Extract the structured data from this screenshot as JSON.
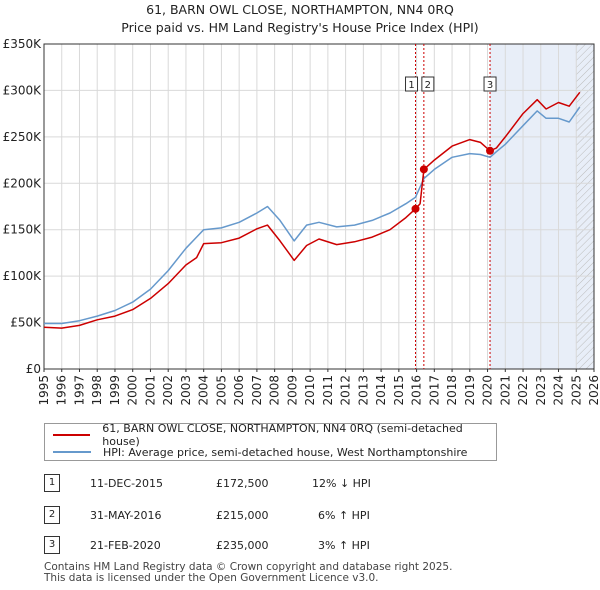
{
  "title_line1": "61, BARN OWL CLOSE, NORTHAMPTON, NN4 0RQ",
  "title_line2": "Price paid vs. HM Land Registry's House Price Index (HPI)",
  "colors": {
    "property": "#cc0000",
    "hpi": "#6699cc",
    "shade": "#e8eef8",
    "grid": "#d9d9d9"
  },
  "chart_data": {
    "type": "line",
    "title": "Price paid vs. HM Land Registry's House Price Index (HPI)",
    "xlabel": "",
    "ylabel": "",
    "xlim": [
      1995,
      2026
    ],
    "ylim": [
      0,
      350000
    ],
    "yticks": [
      0,
      50000,
      100000,
      150000,
      200000,
      250000,
      300000,
      350000
    ],
    "ytick_labels": [
      "£0",
      "£50K",
      "£100K",
      "£150K",
      "£200K",
      "£250K",
      "£300K",
      "£350K"
    ],
    "xticks": [
      "1995",
      "1996",
      "1997",
      "1998",
      "1999",
      "2000",
      "2001",
      "2002",
      "2003",
      "2004",
      "2005",
      "2006",
      "2007",
      "2008",
      "2009",
      "2010",
      "2011",
      "2012",
      "2013",
      "2014",
      "2015",
      "2016",
      "2017",
      "2018",
      "2019",
      "2020",
      "2021",
      "2022",
      "2023",
      "2024",
      "2025",
      "2026"
    ],
    "shaded_from": 2020.14,
    "hatch_from": 2025.0,
    "series": [
      {
        "name": "61, BARN OWL CLOSE, NORTHAMPTON, NN4 0RQ (semi-detached house)",
        "points": [
          [
            1995.0,
            45000
          ],
          [
            1996.0,
            44000
          ],
          [
            1997.0,
            47000
          ],
          [
            1998.0,
            53000
          ],
          [
            1999.0,
            57000
          ],
          [
            2000.0,
            64000
          ],
          [
            2001.0,
            76000
          ],
          [
            2002.0,
            92000
          ],
          [
            2003.0,
            112000
          ],
          [
            2003.6,
            120000
          ],
          [
            2004.0,
            135000
          ],
          [
            2005.0,
            136000
          ],
          [
            2006.0,
            141000
          ],
          [
            2007.0,
            151000
          ],
          [
            2007.6,
            155000
          ],
          [
            2008.3,
            138000
          ],
          [
            2009.1,
            117000
          ],
          [
            2009.8,
            133000
          ],
          [
            2010.5,
            140000
          ],
          [
            2011.5,
            134000
          ],
          [
            2012.5,
            137000
          ],
          [
            2013.5,
            142000
          ],
          [
            2014.5,
            150000
          ],
          [
            2015.4,
            163000
          ],
          [
            2015.94,
            172500
          ],
          [
            2016.2,
            178000
          ],
          [
            2016.41,
            215000
          ],
          [
            2017.0,
            225000
          ],
          [
            2018.0,
            240000
          ],
          [
            2019.0,
            247000
          ],
          [
            2019.6,
            244000
          ],
          [
            2020.14,
            235000
          ],
          [
            2020.5,
            238000
          ],
          [
            2021.0,
            250000
          ],
          [
            2022.0,
            275000
          ],
          [
            2022.8,
            290000
          ],
          [
            2023.3,
            280000
          ],
          [
            2024.0,
            287000
          ],
          [
            2024.6,
            283000
          ],
          [
            2025.2,
            298000
          ]
        ]
      },
      {
        "name": "HPI: Average price, semi-detached house, West Northamptonshire",
        "points": [
          [
            1995.0,
            49000
          ],
          [
            1996.0,
            49000
          ],
          [
            1997.0,
            52000
          ],
          [
            1998.0,
            57000
          ],
          [
            1999.0,
            63000
          ],
          [
            2000.0,
            72000
          ],
          [
            2001.0,
            86000
          ],
          [
            2002.0,
            106000
          ],
          [
            2003.0,
            130000
          ],
          [
            2003.6,
            142000
          ],
          [
            2004.0,
            150000
          ],
          [
            2005.0,
            152000
          ],
          [
            2006.0,
            158000
          ],
          [
            2007.0,
            168000
          ],
          [
            2007.6,
            175000
          ],
          [
            2008.3,
            160000
          ],
          [
            2009.1,
            138000
          ],
          [
            2009.8,
            155000
          ],
          [
            2010.5,
            158000
          ],
          [
            2011.5,
            153000
          ],
          [
            2012.5,
            155000
          ],
          [
            2013.5,
            160000
          ],
          [
            2014.5,
            168000
          ],
          [
            2015.4,
            178000
          ],
          [
            2015.94,
            185000
          ],
          [
            2016.41,
            205000
          ],
          [
            2017.0,
            215000
          ],
          [
            2018.0,
            228000
          ],
          [
            2019.0,
            232000
          ],
          [
            2019.6,
            231000
          ],
          [
            2020.14,
            228000
          ],
          [
            2020.5,
            234000
          ],
          [
            2021.0,
            242000
          ],
          [
            2022.0,
            262000
          ],
          [
            2022.8,
            278000
          ],
          [
            2023.3,
            270000
          ],
          [
            2024.0,
            270000
          ],
          [
            2024.6,
            266000
          ],
          [
            2025.2,
            282000
          ]
        ]
      }
    ],
    "transactions": [
      {
        "label": "1",
        "x": 2015.94,
        "y": 172500
      },
      {
        "label": "2",
        "x": 2016.41,
        "y": 215000
      },
      {
        "label": "3",
        "x": 2020.14,
        "y": 235000
      }
    ]
  },
  "legend": {
    "property": "61, BARN OWL CLOSE, NORTHAMPTON, NN4 0RQ (semi-detached house)",
    "hpi": "HPI: Average price, semi-detached house, West Northamptonshire"
  },
  "table": [
    {
      "num": "1",
      "date": "11-DEC-2015",
      "price": "£172,500",
      "hpi": "12% ↓ HPI"
    },
    {
      "num": "2",
      "date": "31-MAY-2016",
      "price": "£215,000",
      "hpi": "6% ↑ HPI"
    },
    {
      "num": "3",
      "date": "21-FEB-2020",
      "price": "£235,000",
      "hpi": "3% ↑ HPI"
    }
  ],
  "footer_line1": "Contains HM Land Registry data © Crown copyright and database right 2025.",
  "footer_line2": "This data is licensed under the Open Government Licence v3.0."
}
